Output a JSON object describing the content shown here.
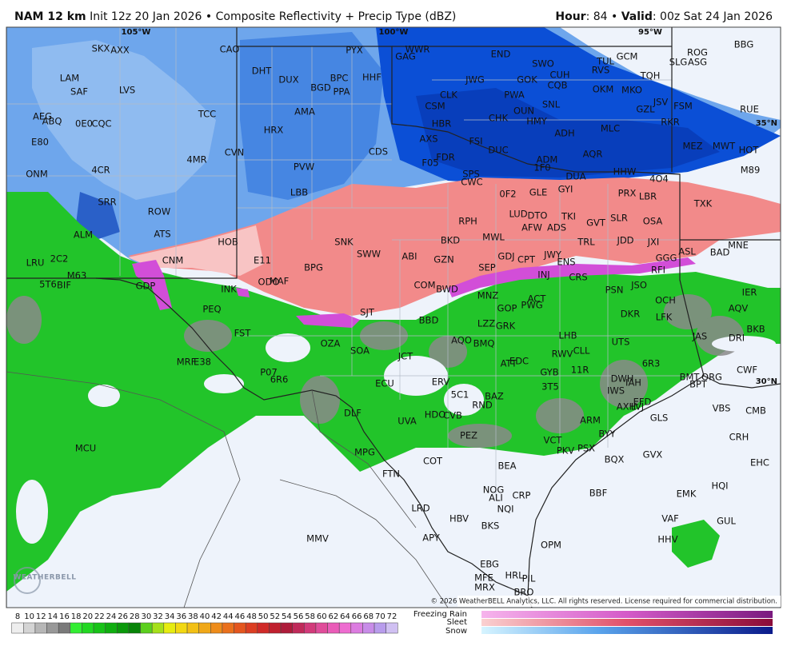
{
  "header": {
    "model": "NAM 12 km",
    "init": "Init 12z 20 Jan 2026",
    "separator": "•",
    "product": "Composite Reflectivity + Precip Type (dBZ)",
    "hour_label": "Hour",
    "hour": ": 84",
    "valid_label": "Valid",
    "valid": ": 00z Sat 24 Jan 2026"
  },
  "grid_labels": [
    "105°W",
    "100°W",
    "95°W",
    "35°N",
    "30°N"
  ],
  "stations": [
    "SKX",
    "AXX",
    "CAO",
    "PYX",
    "WWR",
    "GAG",
    "END",
    "BBG",
    "GCM",
    "ROG",
    "TUL",
    "SLG",
    "ASG",
    "SWO",
    "RVS",
    "CUH",
    "TQH",
    "LAM",
    "DHT",
    "DUX",
    "BPC",
    "HHF",
    "CQB",
    "JWG",
    "GOK",
    "OKM",
    "MKO",
    "SAF",
    "LVS",
    "BGD",
    "PPA",
    "CLK",
    "PWA",
    "RUE",
    "JSV",
    "FSM",
    "SNL",
    "GZL",
    "TCC",
    "AMA",
    "CSM",
    "OUN",
    "AEG",
    "ABQ",
    "CHK",
    "HMY",
    "RKR",
    "HBR",
    "0E0",
    "CQC",
    "MLC",
    "ADH",
    "HRX",
    "E80",
    "AXS",
    "FSI",
    "CDS",
    "MEZ",
    "MWT",
    "HOT",
    "DUC",
    "ADM",
    "AQR",
    "CVN",
    "4MR",
    "FDR",
    "F05",
    "4CR",
    "M89",
    "ONM",
    "PVW",
    "1F0",
    "HHW",
    "SPS",
    "CWC",
    "DUA",
    "4O4",
    "GYI",
    "0F2",
    "GLE",
    "LBB",
    "PRX",
    "LBR",
    "SRR",
    "TXK",
    "ROW",
    "RPH",
    "LUD",
    "DTO",
    "TKI",
    "SLR",
    "GVT",
    "OSA",
    "AFW",
    "ADS",
    "ALM",
    "ATS",
    "SNK",
    "MWL",
    "BKD",
    "TRL",
    "JDD",
    "JXI",
    "HOB",
    "MNE",
    "SWW",
    "ABI",
    "GZN",
    "GDJ",
    "CPT",
    "JWY",
    "GGG",
    "ASL",
    "BAD",
    "LRU",
    "2C2",
    "CNM",
    "E11",
    "ENS",
    "BPG",
    "SEP",
    "RFI",
    "INJ",
    "CRS",
    "M63",
    "MAF",
    "ODO",
    "5T6",
    "BIF",
    "GDP",
    "INK",
    "COM",
    "BWD",
    "PSN",
    "JSO",
    "IER",
    "MNZ",
    "ACT",
    "OCH",
    "PEQ",
    "GOP",
    "PWG",
    "AQV",
    "SJT",
    "DKR",
    "BBD",
    "LFK",
    "LZZ",
    "GRK",
    "BKB",
    "FST",
    "JAS",
    "DRI",
    "LHB",
    "AQO",
    "BMQ",
    "OZA",
    "SOA",
    "UTS",
    "CLL",
    "RWV",
    "MRF",
    "E38",
    "JCT",
    "EDC",
    "ATT",
    "6R3",
    "11R",
    "CWF",
    "P07",
    "GYB",
    "6R6",
    "DWH",
    "IAH",
    "BMT",
    "ORG",
    "BPT",
    "ECU",
    "ERV",
    "3T5",
    "IWS",
    "EFD",
    "5C1",
    "BAZ",
    "AXH",
    "LVJ",
    "VBS",
    "CMB",
    "DLF",
    "HDO",
    "CVB",
    "RND",
    "UVA",
    "GLS",
    "ARM",
    "PEZ",
    "BYY",
    "CRH",
    "MCU",
    "VCT",
    "MPG",
    "PKV",
    "PSX",
    "EHC",
    "BQX",
    "GVX",
    "COT",
    "BEA",
    "FTN",
    "HQI",
    "NOG",
    "BBF",
    "EMK",
    "ALI",
    "CRP",
    "NQI",
    "LRD",
    "VAF",
    "HBV",
    "GUL",
    "BKS",
    "MMV",
    "HHV",
    "APY",
    "OPM",
    "EBG",
    "HRL",
    "PIL",
    "MFE",
    "MRX",
    "BRO"
  ],
  "copyright": "© 2026 WeatherBELL Analytics, LLC. All rights reserved. License required for commercial distribution.",
  "logo": "WEATHERBELL",
  "legend": {
    "ticks": [
      8,
      10,
      12,
      14,
      16,
      18,
      20,
      22,
      24,
      26,
      28,
      30,
      32,
      34,
      36,
      38,
      40,
      42,
      44,
      46,
      48,
      50,
      52,
      54,
      56,
      58,
      60,
      62,
      64,
      66,
      68,
      70,
      72
    ],
    "colors": [
      "#eeeeee",
      "#d4d4d4",
      "#b6b6b6",
      "#989898",
      "#7a7a7a",
      "#33ee33",
      "#22d822",
      "#17c317",
      "#0fae0f",
      "#0a990a",
      "#078407",
      "#5ccf1e",
      "#a6e01a",
      "#e6ec10",
      "#f2d812",
      "#f2c015",
      "#f0a818",
      "#ee8c1a",
      "#ea701c",
      "#e4561e",
      "#dc3e22",
      "#d02a28",
      "#c0202e",
      "#ae1c3a",
      "#c02a5a",
      "#d23a7a",
      "#e04c9a",
      "#ea5cb8",
      "#ee6cd0",
      "#dc7ce0",
      "#c88ce8",
      "#b89cec",
      "#d0c0f2"
    ],
    "ptypes": [
      "Freezing Rain",
      "Sleet",
      "Snow"
    ]
  }
}
